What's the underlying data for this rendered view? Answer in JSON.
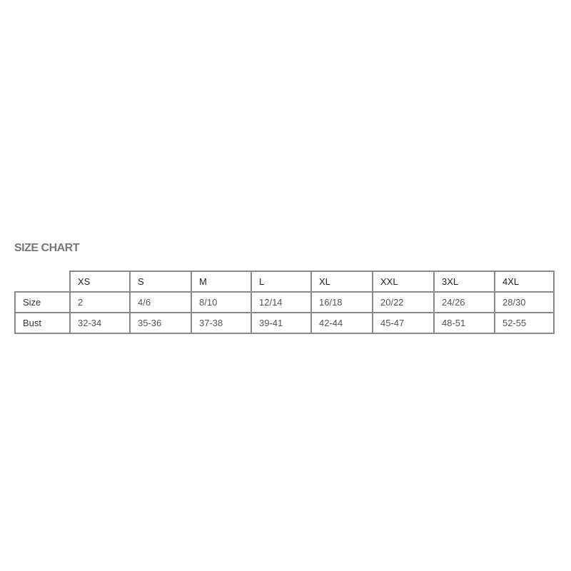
{
  "title": "SIZE CHART",
  "table": {
    "headers": [
      "XS",
      "S",
      "M",
      "L",
      "XL",
      "XXL",
      "3XL",
      "4XL"
    ],
    "rows": [
      {
        "label": "Size",
        "values": [
          "2",
          "4/6",
          "8/10",
          "12/14",
          "16/18",
          "20/22",
          "24/26",
          "28/30"
        ]
      },
      {
        "label": "Bust",
        "values": [
          "32-34",
          "35-36",
          "37-38",
          "39-41",
          "42-44",
          "45-47",
          "48-51",
          "52-55"
        ]
      }
    ]
  }
}
